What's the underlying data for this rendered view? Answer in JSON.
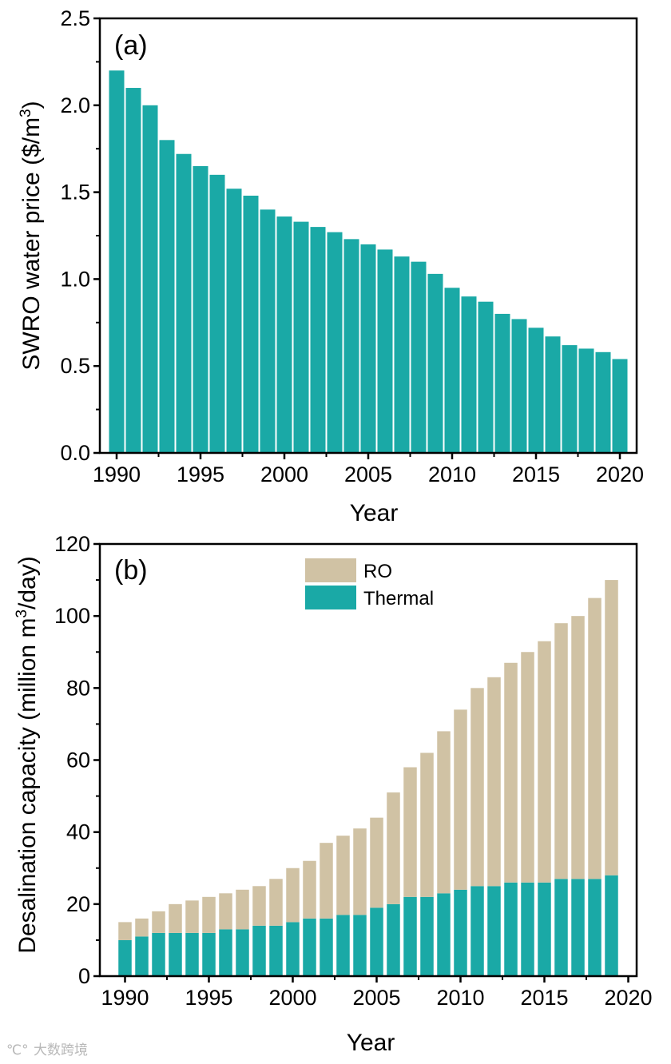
{
  "chart_data": [
    {
      "type": "bar",
      "panel_label": "(a)",
      "title": "",
      "xlabel": "Year",
      "ylabel_main": "SWRO water price ($/m",
      "ylabel_sup": "3",
      "ylabel_end": ")",
      "xlim": [
        1989,
        2021
      ],
      "ylim": [
        0,
        2.5
      ],
      "xticks": [
        "1990",
        "1995",
        "2000",
        "2005",
        "2010",
        "2015",
        "2020"
      ],
      "yticks": [
        "0.0",
        "0.5",
        "1.0",
        "1.5",
        "2.0",
        "2.5"
      ],
      "x": [
        1990,
        1991,
        1992,
        1993,
        1994,
        1995,
        1996,
        1997,
        1998,
        1999,
        2000,
        2001,
        2002,
        2003,
        2004,
        2005,
        2006,
        2007,
        2008,
        2009,
        2010,
        2011,
        2012,
        2013,
        2014,
        2015,
        2016,
        2017,
        2018,
        2019,
        2020
      ],
      "values": [
        2.2,
        2.1,
        2.0,
        1.8,
        1.72,
        1.65,
        1.6,
        1.52,
        1.48,
        1.4,
        1.36,
        1.33,
        1.3,
        1.27,
        1.23,
        1.2,
        1.17,
        1.13,
        1.1,
        1.03,
        0.95,
        0.9,
        0.87,
        0.8,
        0.77,
        0.72,
        0.67,
        0.62,
        0.6,
        0.58,
        0.54
      ],
      "color": "#1aa9a6"
    },
    {
      "type": "bar",
      "stacked": true,
      "panel_label": "(b)",
      "title": "",
      "xlabel": "Year",
      "ylabel_main": "Desalination capacity (million m",
      "ylabel_sup": "3",
      "ylabel_end": "/day)",
      "xlim": [
        1988.5,
        2020.5
      ],
      "ylim": [
        0,
        120
      ],
      "xticks": [
        "1990",
        "1995",
        "2000",
        "2005",
        "2010",
        "2015",
        "2020"
      ],
      "yticks": [
        "0",
        "20",
        "40",
        "60",
        "80",
        "100",
        "120"
      ],
      "x": [
        1990,
        1991,
        1992,
        1993,
        1994,
        1995,
        1996,
        1997,
        1998,
        1999,
        2000,
        2001,
        2002,
        2003,
        2004,
        2005,
        2006,
        2007,
        2008,
        2009,
        2010,
        2011,
        2012,
        2013,
        2014,
        2015,
        2016,
        2017,
        2018,
        2019
      ],
      "legend": [
        "RO",
        "Thermal"
      ],
      "legend_position": "top-center",
      "series": [
        {
          "name": "Thermal",
          "color": "#1aa9a6",
          "values": [
            10,
            11,
            12,
            12,
            12,
            12,
            13,
            13,
            14,
            14,
            15,
            16,
            16,
            17,
            17,
            19,
            20,
            22,
            22,
            23,
            24,
            25,
            25,
            26,
            26,
            26,
            27,
            27,
            27,
            28
          ]
        },
        {
          "name": "RO",
          "color": "#d0c2a4",
          "values": [
            5,
            5,
            6,
            8,
            9,
            10,
            10,
            11,
            11,
            13,
            15,
            16,
            21,
            22,
            24,
            25,
            31,
            36,
            40,
            45,
            50,
            55,
            58,
            61,
            64,
            67,
            71,
            73,
            78,
            82
          ]
        }
      ],
      "totals": [
        15,
        16,
        18,
        20,
        21,
        22,
        23,
        24,
        25,
        27,
        30,
        32,
        37,
        39,
        41,
        44,
        51,
        58,
        62,
        68,
        74,
        80,
        83,
        87,
        90,
        93,
        98,
        100,
        105,
        110
      ]
    }
  ],
  "watermark": {
    "logo_text": "℃°",
    "text": "大数跨境"
  }
}
